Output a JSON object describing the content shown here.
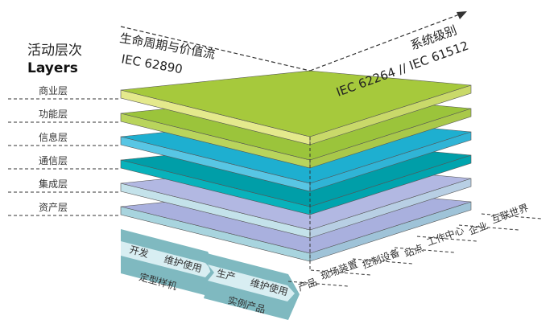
{
  "heading": {
    "zh": "活动层次",
    "en": "Layers"
  },
  "layers": [
    {
      "label": "商业层",
      "top": "#a6c93c",
      "front": "#e4e98c",
      "side": "#c9d96a"
    },
    {
      "label": "功能层",
      "top": "#9bc43b",
      "front": "#b9d45c",
      "side": "#a9c84a"
    },
    {
      "label": "信息层",
      "top": "#1eafd0",
      "front": "#58c6e4",
      "side": "#30b4d6"
    },
    {
      "label": "通信层",
      "top": "#009ea8",
      "front": "#08b2bb",
      "side": "#00a4ae"
    },
    {
      "label": "集成层",
      "top": "#b2b8e2",
      "front": "#c4e2ea",
      "side": "#b8cfe4"
    },
    {
      "label": "资产层",
      "top": "#a9b0de",
      "front": "#a8d4de",
      "side": "#9fc3d8"
    }
  ],
  "axes": {
    "lifecycle": {
      "line1": "生命周期与价值流",
      "line2": "IEC 62890"
    },
    "hierarchy": {
      "line1": "系统级别",
      "line2": "IEC 62264 // IEC 61512"
    }
  },
  "hierarchy_levels": [
    "互联世界",
    "企业",
    "工作中心",
    "站点",
    "控制设备",
    "现场装置",
    "产品"
  ],
  "lifecycle_band": {
    "type": {
      "steps": [
        "开发",
        "维护使用"
      ],
      "name": "定型样机"
    },
    "instance": {
      "steps": [
        "生产",
        "维护使用"
      ],
      "name": "实例产品"
    }
  }
}
